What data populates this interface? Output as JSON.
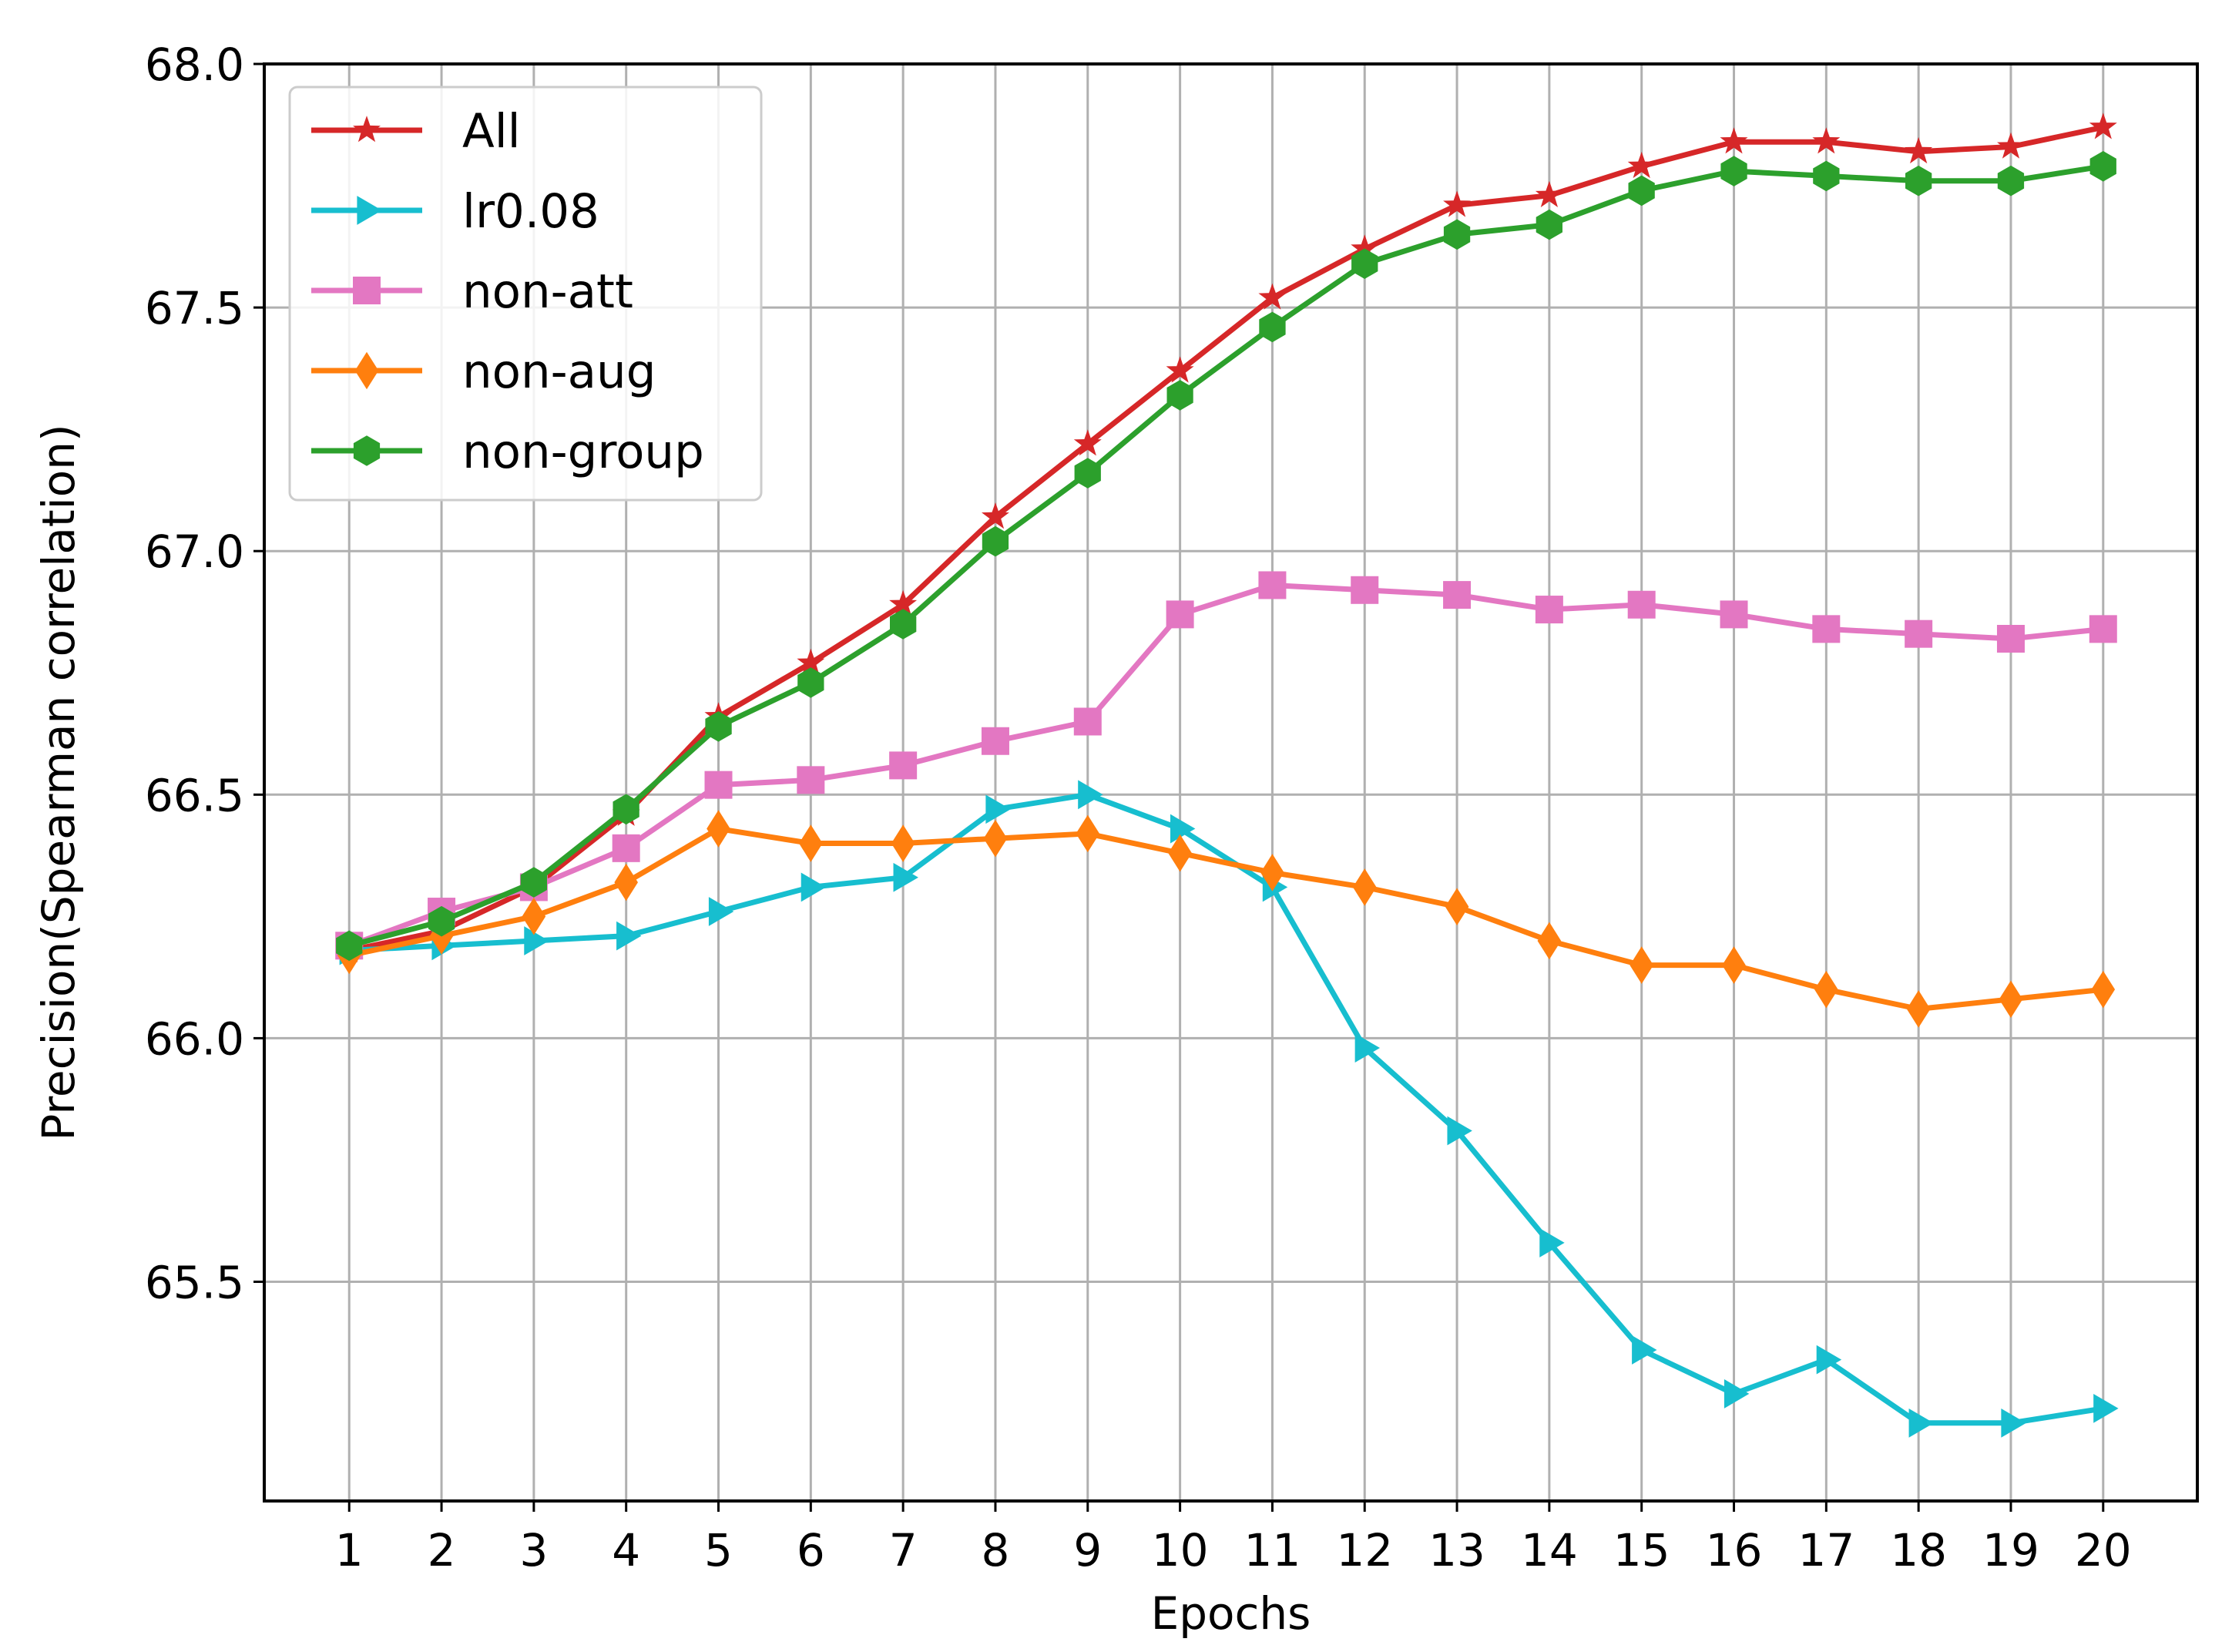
{
  "chart_data": {
    "type": "line",
    "title": "",
    "xlabel": "Epochs",
    "ylabel": "Precision(Spearman correlation)",
    "x": [
      1,
      2,
      3,
      4,
      5,
      6,
      7,
      8,
      9,
      10,
      11,
      12,
      13,
      14,
      15,
      16,
      17,
      18,
      19,
      20
    ],
    "xticks": [
      "1",
      "2",
      "3",
      "4",
      "5",
      "6",
      "7",
      "8",
      "9",
      "10",
      "11",
      "12",
      "13",
      "14",
      "15",
      "16",
      "17",
      "18",
      "19",
      "20"
    ],
    "yticks": [
      "65.5",
      "66.0",
      "66.5",
      "67.0",
      "67.5",
      "68.0"
    ],
    "ytick_values": [
      65.5,
      66.0,
      66.5,
      67.0,
      67.5,
      68.0
    ],
    "xlim": [
      0.08,
      21.02
    ],
    "ylim": [
      65.05,
      68.0
    ],
    "grid": true,
    "legend_position": "top-left",
    "series": [
      {
        "name": "All",
        "color": "#d62728",
        "marker": "star",
        "values": [
          66.18,
          66.22,
          66.31,
          66.46,
          66.66,
          66.77,
          66.89,
          67.07,
          67.22,
          67.37,
          67.52,
          67.62,
          67.71,
          67.73,
          67.79,
          67.84,
          67.84,
          67.82,
          67.83,
          67.87
        ]
      },
      {
        "name": "lr0.08",
        "color": "#17becf",
        "marker": "triangle-right",
        "values": [
          66.18,
          66.19,
          66.2,
          66.21,
          66.26,
          66.31,
          66.33,
          66.47,
          66.5,
          66.43,
          66.31,
          65.98,
          65.81,
          65.58,
          65.36,
          65.27,
          65.34,
          65.21,
          65.21,
          65.24
        ]
      },
      {
        "name": "non-att",
        "color": "#e377c2",
        "marker": "square",
        "values": [
          66.19,
          66.26,
          66.31,
          66.39,
          66.52,
          66.53,
          66.56,
          66.61,
          66.65,
          66.87,
          66.93,
          66.92,
          66.91,
          66.88,
          66.89,
          66.87,
          66.84,
          66.83,
          66.82,
          66.84
        ]
      },
      {
        "name": "non-aug",
        "color": "#ff7f0e",
        "marker": "thin-diamond",
        "values": [
          66.17,
          66.21,
          66.25,
          66.32,
          66.43,
          66.4,
          66.4,
          66.41,
          66.42,
          66.38,
          66.34,
          66.31,
          66.27,
          66.2,
          66.15,
          66.15,
          66.1,
          66.06,
          66.08,
          66.1
        ]
      },
      {
        "name": "non-group",
        "color": "#2ca02c",
        "marker": "hexagon",
        "values": [
          66.19,
          66.24,
          66.32,
          66.47,
          66.64,
          66.73,
          66.85,
          67.02,
          67.16,
          67.32,
          67.46,
          67.59,
          67.65,
          67.67,
          67.74,
          67.78,
          67.77,
          67.76,
          67.76,
          67.79
        ]
      }
    ]
  }
}
